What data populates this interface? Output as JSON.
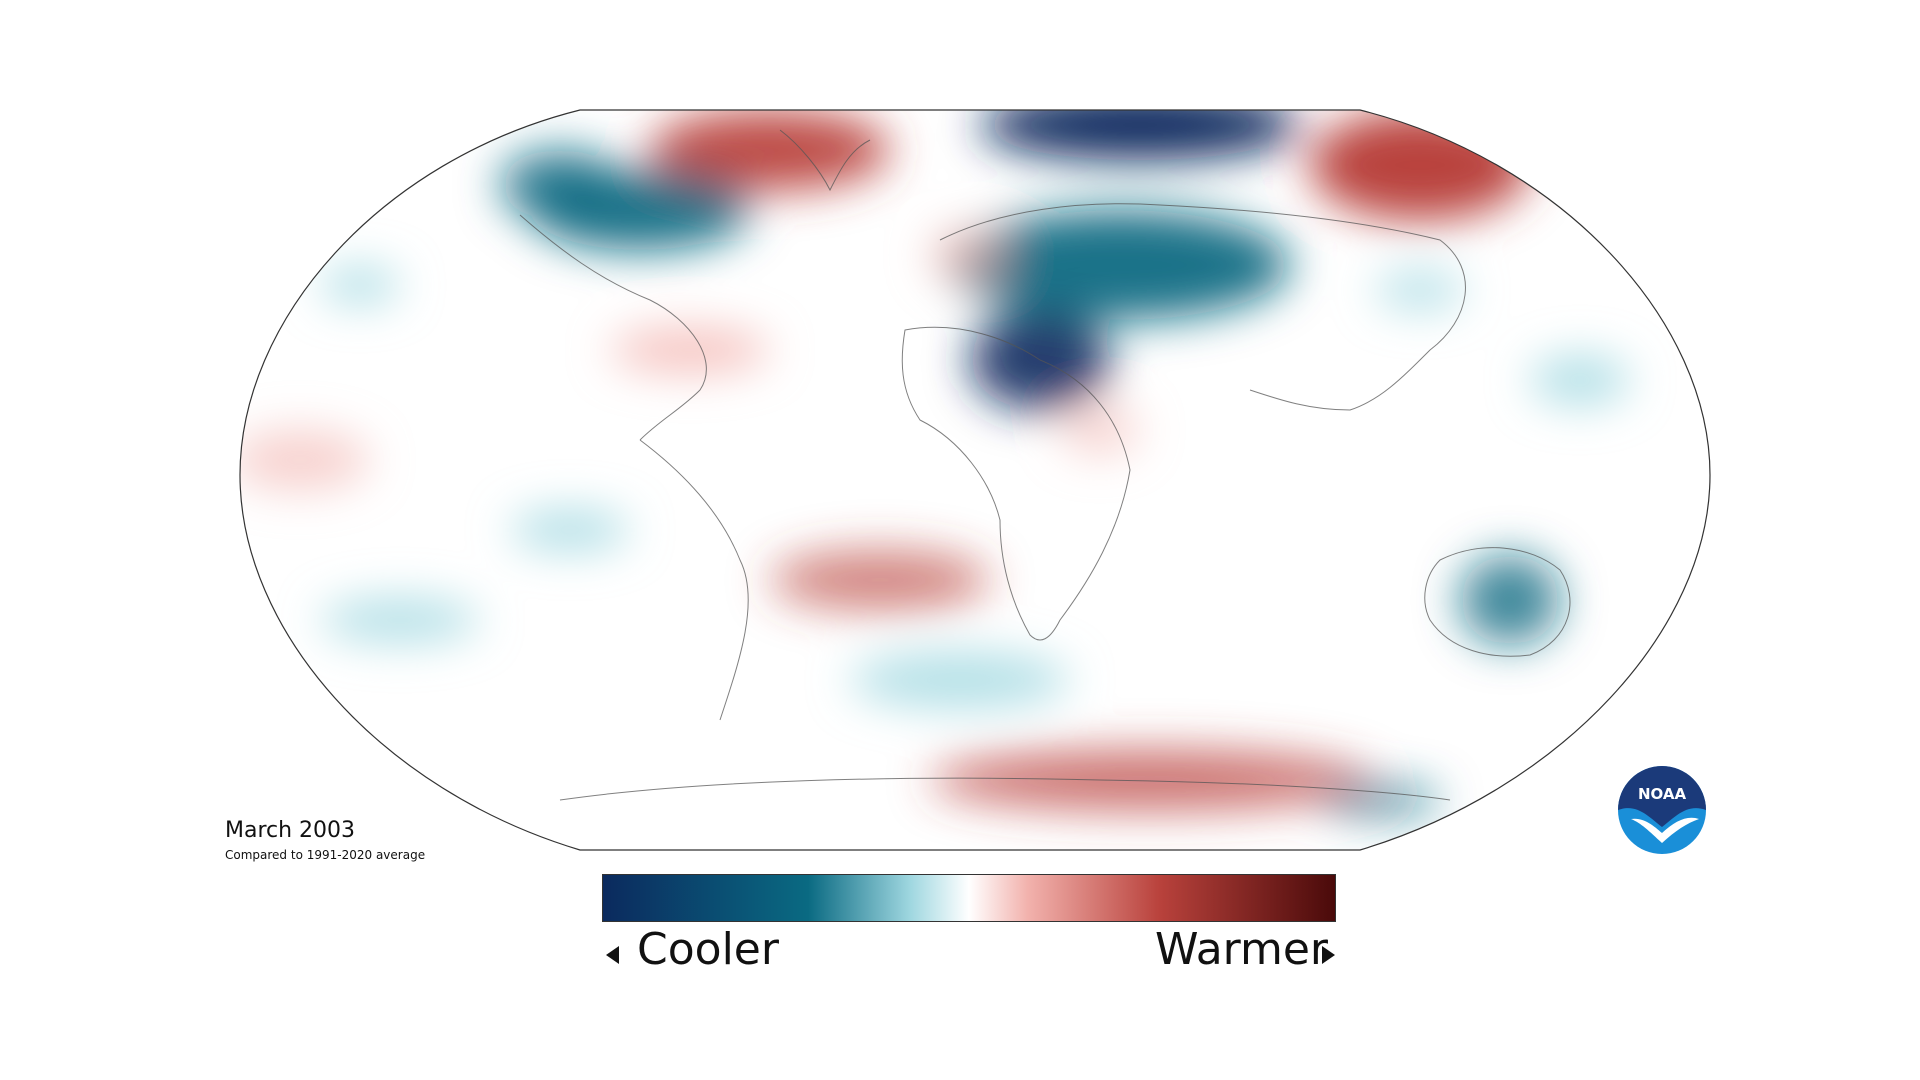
{
  "map": {
    "title": "March 2003",
    "subtitle": "Compared to 1991-2020 average",
    "colors": {
      "cool_strong": "#0b2a5e",
      "cool_mid": "#0a6a82",
      "cool_light": "#9fd7e0",
      "neutral": "#ffffff",
      "warm_light": "#f2b2ad",
      "warm_mid": "#b9423c",
      "warm_strong": "#4a0a0a"
    }
  },
  "legend": {
    "left_label": "Cooler",
    "right_label": "Warmer"
  },
  "logo": {
    "text": "NOAA",
    "icon": "noaa-logo-icon"
  }
}
